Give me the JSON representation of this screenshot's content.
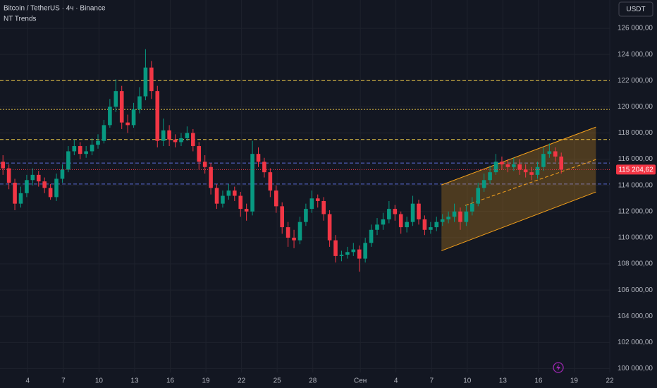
{
  "chart_data": {
    "type": "candlestick",
    "title": "Bitcoin / TetherUS · 4ч · Binance",
    "subtitle": "NT Trends",
    "currency": "USDT",
    "up_color": "#089981",
    "down_color": "#f23645",
    "grid": true,
    "xlim": [
      0,
      308
    ],
    "ylim": [
      99700,
      128160
    ],
    "xticks": [
      {
        "value": 14,
        "label": "4"
      },
      {
        "value": 32,
        "label": "7"
      },
      {
        "value": 50,
        "label": "10"
      },
      {
        "value": 68,
        "label": "13"
      },
      {
        "value": 86,
        "label": "16"
      },
      {
        "value": 104,
        "label": "19"
      },
      {
        "value": 122,
        "label": "22"
      },
      {
        "value": 140,
        "label": "25"
      },
      {
        "value": 158,
        "label": "28"
      },
      {
        "value": 182,
        "label": "Сен"
      },
      {
        "value": 200,
        "label": "4"
      },
      {
        "value": 218,
        "label": "7"
      },
      {
        "value": 236,
        "label": "10"
      },
      {
        "value": 254,
        "label": "13"
      },
      {
        "value": 272,
        "label": "16"
      },
      {
        "value": 290,
        "label": "19"
      },
      {
        "value": 308,
        "label": "22"
      }
    ],
    "yticks": [
      {
        "value": 100000,
        "label": "100 000,00"
      },
      {
        "value": 102000,
        "label": "102 000,00"
      },
      {
        "value": 104000,
        "label": "104 000,00"
      },
      {
        "value": 106000,
        "label": "106 000,00"
      },
      {
        "value": 108000,
        "label": "108 000,00"
      },
      {
        "value": 110000,
        "label": "110 000,00"
      },
      {
        "value": 112000,
        "label": "112 000,00"
      },
      {
        "value": 114000,
        "label": "114 000,00"
      },
      {
        "value": 116000,
        "label": "116 000,00"
      },
      {
        "value": 118000,
        "label": "118 000,00"
      },
      {
        "value": 120000,
        "label": "120 000,00"
      },
      {
        "value": 122000,
        "label": "122 000,00"
      },
      {
        "value": 124000,
        "label": "124 000,00"
      },
      {
        "value": 126000,
        "label": "126 000,00"
      }
    ],
    "current_price": {
      "value": 115204.62,
      "label": "115 204,62"
    },
    "levels": [
      {
        "value": 122000,
        "color": "#e8c547",
        "dash": "5 3"
      },
      {
        "value": 119800,
        "color": "#e8c547",
        "dash": "2 2"
      },
      {
        "value": 117500,
        "color": "#e8c547",
        "dash": "5 3"
      },
      {
        "value": 115700,
        "color": "#5b6bd6",
        "dash": "5 3"
      },
      {
        "value": 114100,
        "color": "#5b6bd6",
        "dash": "5 3"
      }
    ],
    "channel": {
      "color": "#f7a21b",
      "x": [
        223,
        301
      ],
      "upper": [
        114030,
        118450
      ],
      "lower": [
        109000,
        113490
      ],
      "middle_x": [
        235,
        301
      ],
      "middle": [
        112460,
        115970
      ]
    },
    "x": [
      1.5,
      4.5,
      7.5,
      10.5,
      13.5,
      16.5,
      19.5,
      22.5,
      25.5,
      28.5,
      31.5,
      34.5,
      37.5,
      40.5,
      43.5,
      46.5,
      49.5,
      52.5,
      55.5,
      58.5,
      61.5,
      64.5,
      67.5,
      70.5,
      73.5,
      76.5,
      79.5,
      82.5,
      85.5,
      88.5,
      91.5,
      94.5,
      97.5,
      100.5,
      103.5,
      106.5,
      109.5,
      112.5,
      115.5,
      118.5,
      121.5,
      124.5,
      127.5,
      130.5,
      133.5,
      136.5,
      139.5,
      142.5,
      145.5,
      148.5,
      151.5,
      154.5,
      157.5,
      160.5,
      163.5,
      166.5,
      169.5,
      172.5,
      175.5,
      178.5,
      181.5,
      184.5,
      187.5,
      190.5,
      193.5,
      196.5,
      199.5,
      202.5,
      205.5,
      208.5,
      211.5,
      214.5,
      217.5,
      220.5,
      223.5,
      226.5,
      229.5,
      232.5,
      235.5,
      238.5,
      241.5,
      244.5,
      247.5,
      250.5,
      253.5,
      256.5,
      259.5,
      262.5,
      265.5,
      268.5,
      271.5,
      274.5,
      277.5,
      280.5,
      283.5
    ],
    "open": [
      115800,
      115300,
      114200,
      112600,
      113400,
      114400,
      114800,
      114300,
      113800,
      113100,
      114500,
      115200,
      116600,
      117000,
      116400,
      116600,
      117100,
      117400,
      118600,
      120000,
      121200,
      118800,
      118600,
      119800,
      120800,
      123000,
      121200,
      117400,
      118200,
      117500,
      117300,
      117600,
      118000,
      117000,
      115800,
      115400,
      113800,
      112600,
      113200,
      113600,
      113200,
      112200,
      112000,
      116400,
      115800,
      115000,
      113600,
      112400,
      110800,
      110000,
      109800,
      111200,
      112200,
      113000,
      112800,
      111800,
      109800,
      108600,
      108700,
      108900,
      109100,
      108400,
      109600,
      110600,
      111000,
      111400,
      112200,
      111800,
      110800,
      111200,
      112600,
      111400,
      110600,
      110800,
      111200,
      111400,
      111600,
      112000,
      111200,
      112000,
      112600,
      113800,
      114400,
      115000,
      115800,
      115600,
      115400,
      115600,
      115200,
      115000,
      114800,
      115400,
      116400,
      116600,
      116200
    ],
    "high": [
      116300,
      115600,
      114500,
      113900,
      114800,
      115300,
      115100,
      114600,
      114100,
      114900,
      115600,
      117000,
      117500,
      117300,
      117000,
      117600,
      117900,
      119000,
      120600,
      122100,
      121600,
      119400,
      120300,
      121500,
      124400,
      123500,
      121600,
      119100,
      118600,
      117900,
      118000,
      118500,
      118300,
      117300,
      116300,
      115700,
      114100,
      113600,
      114100,
      113900,
      113500,
      112600,
      117400,
      116900,
      116100,
      115300,
      114000,
      112700,
      111200,
      110600,
      111600,
      112600,
      113600,
      113300,
      113100,
      112100,
      110200,
      109000,
      109300,
      109600,
      109400,
      110000,
      111000,
      111500,
      111900,
      112800,
      112500,
      112000,
      111600,
      113200,
      112900,
      111700,
      111200,
      111600,
      111800,
      112000,
      112600,
      112300,
      112500,
      113100,
      114200,
      114900,
      115500,
      116400,
      116200,
      116000,
      116100,
      116000,
      115600,
      115400,
      115800,
      116900,
      117200,
      116900,
      116500
    ],
    "low": [
      114800,
      113700,
      112100,
      112300,
      113100,
      114000,
      113900,
      113400,
      112900,
      112800,
      114200,
      115000,
      116300,
      116000,
      116100,
      116300,
      116800,
      117200,
      118400,
      119600,
      118300,
      118000,
      118400,
      119500,
      120500,
      120600,
      116900,
      117000,
      117000,
      116900,
      117000,
      117400,
      116600,
      115200,
      114900,
      113300,
      112200,
      112300,
      112900,
      112800,
      111600,
      111300,
      111700,
      115400,
      114600,
      113100,
      111900,
      110300,
      109300,
      109200,
      109500,
      110900,
      111900,
      112300,
      111300,
      109300,
      108100,
      108200,
      108400,
      108600,
      107400,
      108100,
      109300,
      110200,
      110600,
      111100,
      111300,
      110300,
      110400,
      110900,
      111000,
      110200,
      110300,
      110500,
      110900,
      111100,
      111200,
      110600,
      110900,
      111700,
      112400,
      113500,
      114100,
      114800,
      115200,
      115000,
      115100,
      114800,
      114600,
      114400,
      114500,
      115100,
      116100,
      115800,
      114900
    ],
    "close": [
      115300,
      114200,
      112600,
      113400,
      114400,
      114800,
      114300,
      113800,
      113100,
      114500,
      115200,
      116600,
      117000,
      116400,
      116600,
      117100,
      117400,
      118600,
      120000,
      121200,
      118800,
      118600,
      119800,
      120800,
      123000,
      121200,
      117400,
      118200,
      117500,
      117300,
      117600,
      118000,
      117000,
      115800,
      115400,
      113800,
      112600,
      113200,
      113600,
      113200,
      112200,
      112000,
      116400,
      115800,
      115000,
      113600,
      112400,
      110800,
      110000,
      109800,
      111200,
      112200,
      113000,
      112800,
      111800,
      109800,
      108600,
      108700,
      108900,
      109100,
      108400,
      109600,
      110600,
      111000,
      111400,
      112200,
      111800,
      110800,
      111200,
      112600,
      111400,
      110600,
      110800,
      111200,
      111400,
      111600,
      112000,
      111200,
      112000,
      112600,
      113800,
      114400,
      115000,
      115800,
      115600,
      115400,
      115600,
      115200,
      115000,
      114800,
      115400,
      116400,
      116600,
      116200,
      115204.62
    ]
  }
}
